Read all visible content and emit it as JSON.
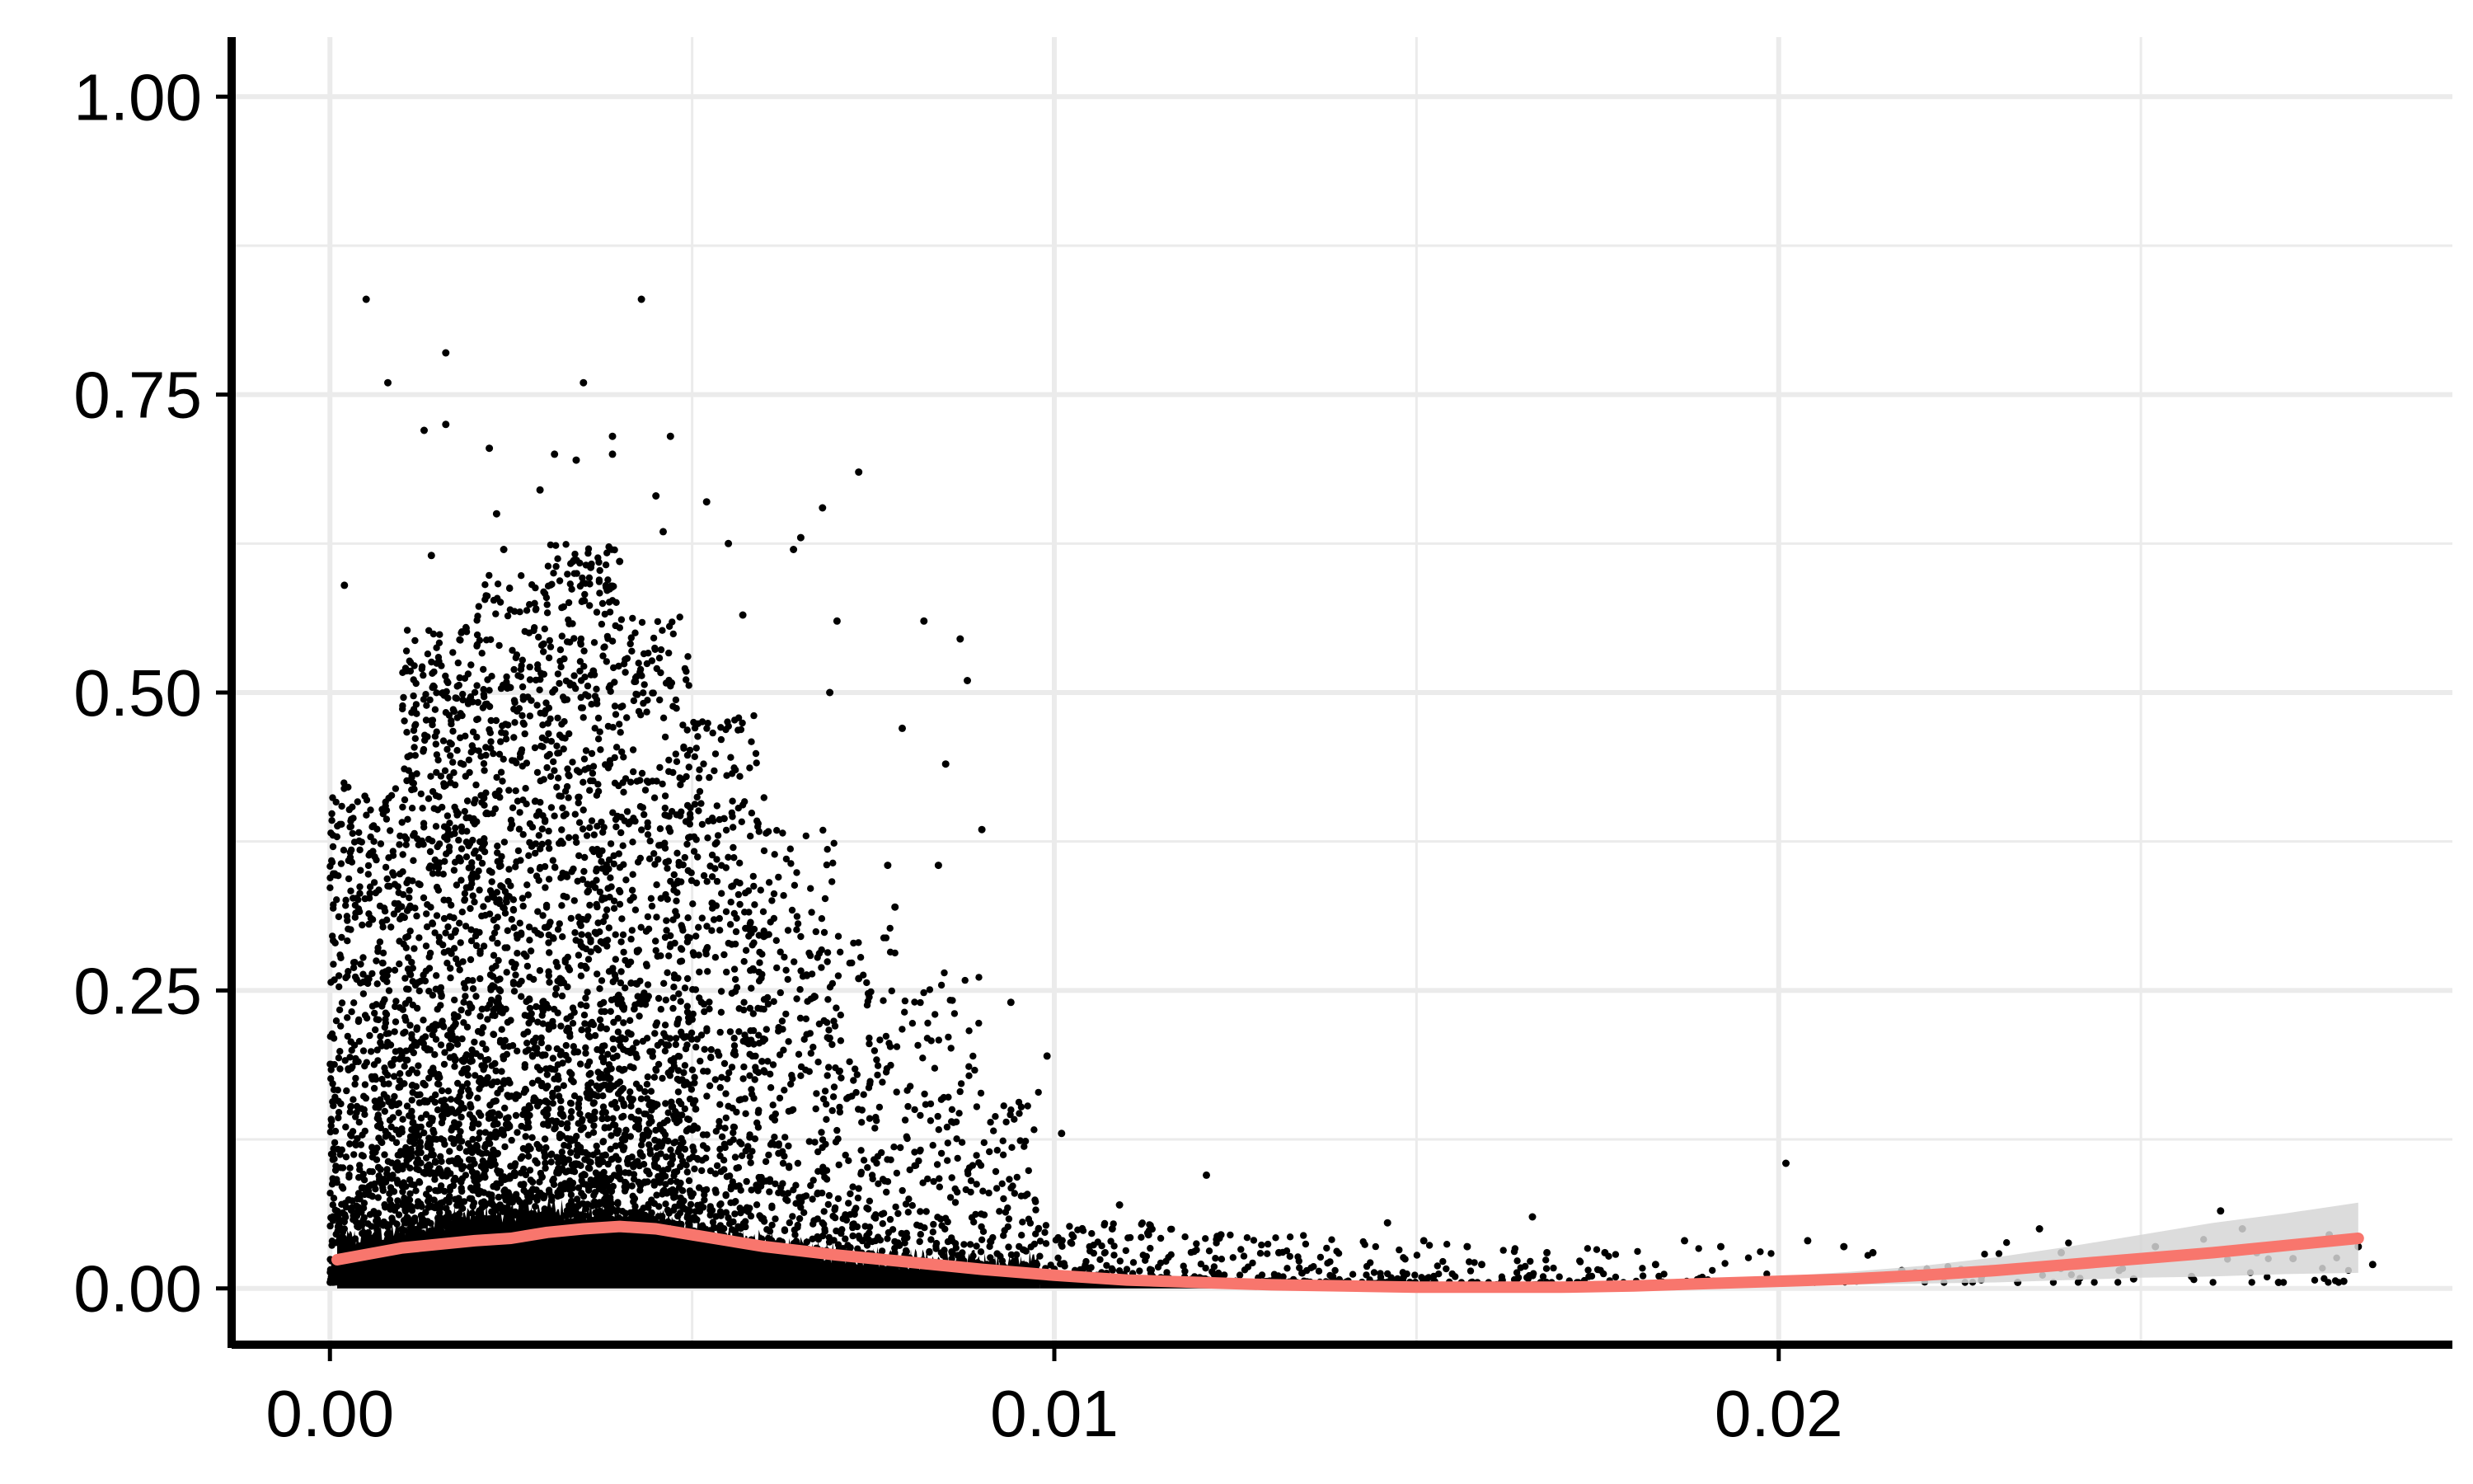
{
  "chart_data": {
    "type": "scatter",
    "title": "",
    "xlabel": "",
    "ylabel": "",
    "xlim": [
      -0.0013,
      0.0293
    ],
    "ylim": [
      -0.05,
      1.05
    ],
    "grid": true,
    "x_ticks": [
      {
        "value": 0.0,
        "label": "0.00"
      },
      {
        "value": 0.01,
        "label": "0.01"
      },
      {
        "value": 0.02,
        "label": "0.02"
      }
    ],
    "x_minor_ticks": [
      0.005,
      0.015,
      0.025
    ],
    "y_ticks": [
      {
        "value": 0.0,
        "label": "0.00"
      },
      {
        "value": 0.25,
        "label": "0.25"
      },
      {
        "value": 0.5,
        "label": "0.50"
      },
      {
        "value": 0.75,
        "label": "0.75"
      },
      {
        "value": 1.0,
        "label": "1.00"
      }
    ],
    "y_minor_ticks": [
      0.125,
      0.375,
      0.625,
      0.875
    ],
    "colors": {
      "points": "#000000",
      "smooth": "#F8766D",
      "ribbon": "#d6d6d6",
      "grid": "#ebebeb",
      "axis": "#000000"
    },
    "outlier_points": [
      [
        0.0005,
        0.83
      ],
      [
        0.0043,
        0.83
      ],
      [
        0.0016,
        0.785
      ],
      [
        0.0008,
        0.76
      ],
      [
        0.0035,
        0.76
      ],
      [
        0.0013,
        0.72
      ],
      [
        0.0016,
        0.725
      ],
      [
        0.0039,
        0.715
      ],
      [
        0.0047,
        0.715
      ],
      [
        0.0039,
        0.7
      ],
      [
        0.0022,
        0.705
      ],
      [
        0.0031,
        0.7
      ],
      [
        0.0034,
        0.695
      ],
      [
        0.0073,
        0.685
      ],
      [
        0.0029,
        0.67
      ],
      [
        0.0045,
        0.665
      ],
      [
        0.0052,
        0.66
      ],
      [
        0.0068,
        0.655
      ],
      [
        0.0023,
        0.65
      ],
      [
        0.0065,
        0.63
      ],
      [
        0.0046,
        0.635
      ],
      [
        0.0055,
        0.625
      ],
      [
        0.0014,
        0.615
      ],
      [
        0.0024,
        0.62
      ],
      [
        0.004,
        0.61
      ],
      [
        0.0064,
        0.62
      ],
      [
        0.0002,
        0.59
      ],
      [
        0.0036,
        0.605
      ],
      [
        0.0057,
        0.565
      ],
      [
        0.0087,
        0.545
      ],
      [
        0.0082,
        0.56
      ],
      [
        0.007,
        0.56
      ],
      [
        0.0088,
        0.51
      ],
      [
        0.0079,
        0.47
      ],
      [
        0.0085,
        0.44
      ],
      [
        0.0069,
        0.5
      ],
      [
        0.0077,
        0.355
      ],
      [
        0.0084,
        0.355
      ],
      [
        0.009,
        0.385
      ],
      [
        0.0078,
        0.32
      ],
      [
        0.0094,
        0.24
      ],
      [
        0.0073,
        0.26
      ],
      [
        0.0099,
        0.195
      ],
      [
        0.0101,
        0.13
      ],
      [
        0.0121,
        0.095
      ],
      [
        0.0109,
        0.07
      ],
      [
        0.0108,
        0.05
      ],
      [
        0.0113,
        0.045
      ],
      [
        0.0123,
        0.045
      ],
      [
        0.0131,
        0.03
      ],
      [
        0.0146,
        0.055
      ],
      [
        0.0151,
        0.04
      ],
      [
        0.0157,
        0.035
      ],
      [
        0.0159,
        0.02
      ],
      [
        0.0166,
        0.06
      ],
      [
        0.0168,
        0.03
      ],
      [
        0.0176,
        0.03
      ],
      [
        0.0183,
        0.02
      ],
      [
        0.0187,
        0.04
      ],
      [
        0.0192,
        0.035
      ],
      [
        0.0201,
        0.105
      ],
      [
        0.0204,
        0.04
      ],
      [
        0.0209,
        0.035
      ],
      [
        0.0213,
        0.03
      ],
      [
        0.0217,
        0.015
      ],
      [
        0.022,
        0.01
      ],
      [
        0.0228,
        0.01
      ],
      [
        0.0236,
        0.05
      ],
      [
        0.0239,
        0.03
      ],
      [
        0.0242,
        0.02
      ],
      [
        0.0247,
        0.015
      ],
      [
        0.0252,
        0.035
      ],
      [
        0.0261,
        0.065
      ],
      [
        0.0264,
        0.05
      ],
      [
        0.0266,
        0.03
      ],
      [
        0.0271,
        0.025
      ],
      [
        0.0276,
        0.045
      ],
      [
        0.028,
        0.035
      ],
      [
        0.0282,
        0.02
      ],
      [
        0.0257,
        0.01
      ],
      [
        0.0269,
        0.005
      ],
      [
        0.0233,
        0.005
      ],
      [
        0.0249,
        0.008
      ],
      [
        0.0278,
        0.006
      ]
    ],
    "density_profile": [
      {
        "x0": 0.0,
        "x1": 0.001,
        "n": 900,
        "max_y": 0.42
      },
      {
        "x0": 0.001,
        "x1": 0.002,
        "n": 1300,
        "max_y": 0.55
      },
      {
        "x0": 0.002,
        "x1": 0.003,
        "n": 1200,
        "max_y": 0.6
      },
      {
        "x0": 0.003,
        "x1": 0.004,
        "n": 1300,
        "max_y": 0.62
      },
      {
        "x0": 0.004,
        "x1": 0.005,
        "n": 1050,
        "max_y": 0.56
      },
      {
        "x0": 0.005,
        "x1": 0.006,
        "n": 650,
        "max_y": 0.48
      },
      {
        "x0": 0.006,
        "x1": 0.007,
        "n": 420,
        "max_y": 0.38
      },
      {
        "x0": 0.007,
        "x1": 0.008,
        "n": 280,
        "max_y": 0.3
      },
      {
        "x0": 0.008,
        "x1": 0.009,
        "n": 220,
        "max_y": 0.26
      },
      {
        "x0": 0.009,
        "x1": 0.0098,
        "n": 140,
        "max_y": 0.16
      },
      {
        "x0": 0.0098,
        "x1": 0.012,
        "n": 180,
        "max_y": 0.05
      },
      {
        "x0": 0.012,
        "x1": 0.014,
        "n": 110,
        "max_y": 0.04
      },
      {
        "x0": 0.014,
        "x1": 0.017,
        "n": 90,
        "max_y": 0.035
      },
      {
        "x0": 0.017,
        "x1": 0.02,
        "n": 45,
        "max_y": 0.03
      },
      {
        "x0": 0.02,
        "x1": 0.023,
        "n": 25,
        "max_y": 0.025
      },
      {
        "x0": 0.023,
        "x1": 0.028,
        "n": 30,
        "max_y": 0.04
      }
    ],
    "smooth": {
      "x": [
        0.0001,
        0.001,
        0.002,
        0.0025,
        0.003,
        0.0035,
        0.004,
        0.0045,
        0.005,
        0.0055,
        0.006,
        0.007,
        0.008,
        0.009,
        0.01,
        0.011,
        0.012,
        0.013,
        0.014,
        0.015,
        0.016,
        0.017,
        0.018,
        0.019,
        0.02,
        0.021,
        0.022,
        0.023,
        0.024,
        0.025,
        0.026,
        0.027,
        0.028
      ],
      "y": [
        0.024,
        0.034,
        0.04,
        0.042,
        0.047,
        0.05,
        0.052,
        0.05,
        0.045,
        0.04,
        0.035,
        0.028,
        0.022,
        0.016,
        0.011,
        0.007,
        0.005,
        0.003,
        0.002,
        0.001,
        0.001,
        0.001,
        0.002,
        0.004,
        0.006,
        0.008,
        0.011,
        0.015,
        0.02,
        0.025,
        0.03,
        0.036,
        0.042
      ],
      "ribbon_lower": [
        0.02,
        0.031,
        0.037,
        0.04,
        0.044,
        0.048,
        0.05,
        0.048,
        0.043,
        0.038,
        0.033,
        0.026,
        0.02,
        0.014,
        0.009,
        0.005,
        0.003,
        0.001,
        0.0,
        -0.001,
        -0.001,
        -0.001,
        0.0,
        0.001,
        0.002,
        0.003,
        0.004,
        0.005,
        0.007,
        0.009,
        0.01,
        0.012,
        0.013
      ],
      "ribbon_upper": [
        0.028,
        0.037,
        0.043,
        0.045,
        0.05,
        0.053,
        0.055,
        0.053,
        0.048,
        0.043,
        0.038,
        0.031,
        0.025,
        0.019,
        0.014,
        0.01,
        0.008,
        0.006,
        0.005,
        0.004,
        0.004,
        0.004,
        0.005,
        0.007,
        0.01,
        0.014,
        0.019,
        0.026,
        0.035,
        0.045,
        0.055,
        0.063,
        0.072
      ]
    }
  }
}
